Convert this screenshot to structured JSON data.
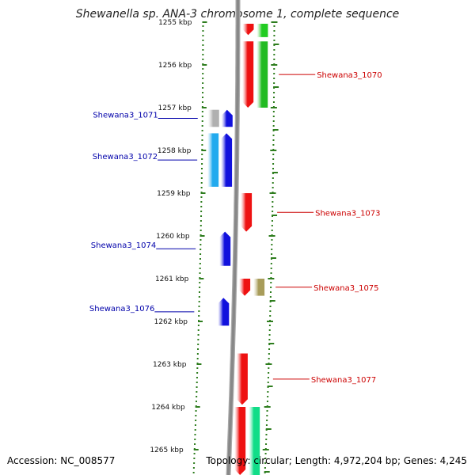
{
  "title": "Shewanella sp. ANA-3 chromosome 1, complete sequence",
  "accession_label": "Accession: NC_008577",
  "summary_label": "Topology: circular; Length: 4,972,204 bp; Genes: 4,245",
  "colors": {
    "forward_label": "#cc0000",
    "reverse_label": "#0000aa",
    "tick": "#2e7d1e",
    "backbone": "#888888"
  },
  "ruler": [
    {
      "kbp": 1255,
      "label": "1255 kbp"
    },
    {
      "kbp": 1256,
      "label": "1256 kbp"
    },
    {
      "kbp": 1257,
      "label": "1257 kbp"
    },
    {
      "kbp": 1258,
      "label": "1258 kbp"
    },
    {
      "kbp": 1259,
      "label": "1259 kbp"
    },
    {
      "kbp": 1260,
      "label": "1260 kbp"
    },
    {
      "kbp": 1261,
      "label": "1261 kbp"
    },
    {
      "kbp": 1262,
      "label": "1262 kbp"
    },
    {
      "kbp": 1263,
      "label": "1263 kbp"
    },
    {
      "kbp": 1264,
      "label": "1264 kbp"
    },
    {
      "kbp": 1265,
      "label": "1265 kbp"
    }
  ],
  "genes": [
    {
      "name": "Shewana3_1070",
      "strand": "+",
      "start_kbp": 1255.45,
      "end_kbp": 1257.0,
      "color": "#ee1111",
      "labeled": true
    },
    {
      "name": "Shewana3_1071",
      "strand": "-",
      "start_kbp": 1257.05,
      "end_kbp": 1257.45,
      "color": "#1111dd",
      "labeled": true
    },
    {
      "name": "Shewana3_1072",
      "strand": "-",
      "start_kbp": 1257.6,
      "end_kbp": 1258.85,
      "color": "#1111dd",
      "labeled": true
    },
    {
      "name": "Shewana3_1073",
      "strand": "+",
      "start_kbp": 1259.0,
      "end_kbp": 1259.9,
      "color": "#ee1111",
      "labeled": true
    },
    {
      "name": "Shewana3_1074",
      "strand": "-",
      "start_kbp": 1259.9,
      "end_kbp": 1260.7,
      "color": "#1111dd",
      "labeled": true
    },
    {
      "name": "Shewana3_1075",
      "strand": "+",
      "start_kbp": 1261.0,
      "end_kbp": 1261.4,
      "color": "#ee1111",
      "labeled": true
    },
    {
      "name": "Shewana3_1076",
      "strand": "-",
      "start_kbp": 1261.45,
      "end_kbp": 1262.1,
      "color": "#1111dd",
      "labeled": true
    },
    {
      "name": "Shewana3_1077",
      "strand": "+",
      "start_kbp": 1262.75,
      "end_kbp": 1263.95,
      "color": "#ee1111",
      "labeled": true
    },
    {
      "name": "",
      "strand": "+",
      "start_kbp": 1254.6,
      "end_kbp": 1255.3,
      "color": "#ee1111",
      "labeled": false
    },
    {
      "name": "",
      "strand": "+",
      "start_kbp": 1264.0,
      "end_kbp": 1265.7,
      "color": "#ee1111",
      "labeled": false
    }
  ],
  "features": [
    {
      "start_kbp": 1254.6,
      "end_kbp": 1255.35,
      "color": "#22cc22",
      "track": "forward_feature"
    },
    {
      "start_kbp": 1255.45,
      "end_kbp": 1257.0,
      "color": "#22bb22",
      "track": "forward_feature"
    },
    {
      "start_kbp": 1257.05,
      "end_kbp": 1257.45,
      "color": "#b0b0b0",
      "track": "reverse_feature"
    },
    {
      "start_kbp": 1257.6,
      "end_kbp": 1258.85,
      "color": "#22aaee",
      "track": "reverse_feature"
    },
    {
      "start_kbp": 1261.0,
      "end_kbp": 1261.4,
      "color": "#a89c5a",
      "track": "forward_feature"
    },
    {
      "start_kbp": 1264.0,
      "end_kbp": 1265.7,
      "color": "#11dd88",
      "track": "forward_feature"
    }
  ]
}
